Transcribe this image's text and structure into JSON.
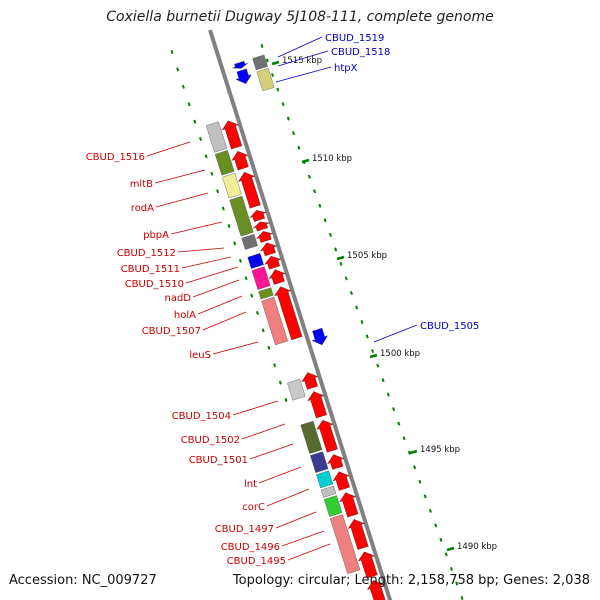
{
  "title": "Coxiella burnetii Dugway 5J108-111, complete genome",
  "accession_label": "Accession: NC_009727",
  "summary_label": "Topology: circular; Length: 2,158,758 bp; Genes: 2,038",
  "colors": {
    "backbone": "#808080",
    "fwd_gene": "#0000ff",
    "rev_gene": "#ff0000",
    "tick": "#008000",
    "label_fwd": "#0000cc",
    "label_rev": "#cc0000",
    "dot": "#008000"
  },
  "ticks": [
    {
      "label": "1515 kbp"
    },
    {
      "label": "1510 kbp"
    },
    {
      "label": "1505 kbp"
    },
    {
      "label": "1500 kbp"
    },
    {
      "label": "1495 kbp"
    },
    {
      "label": "1490 kbp"
    }
  ],
  "genes_forward": [
    {
      "label": "CBUD_1519"
    },
    {
      "label": "CBUD_1518"
    },
    {
      "label": "htpX"
    },
    {
      "label": "CBUD_1505"
    }
  ],
  "genes_reverse": [
    {
      "label": "CBUD_1516"
    },
    {
      "label": "mltB"
    },
    {
      "label": "rodA"
    },
    {
      "label": "pbpA"
    },
    {
      "label": "CBUD_1512"
    },
    {
      "label": "CBUD_1511"
    },
    {
      "label": "CBUD_1510"
    },
    {
      "label": "nadD"
    },
    {
      "label": "holA"
    },
    {
      "label": "CBUD_1507"
    },
    {
      "label": "leuS"
    },
    {
      "label": "CBUD_1504"
    },
    {
      "label": "CBUD_1502"
    },
    {
      "label": "CBUD_1501"
    },
    {
      "label": "lnt"
    },
    {
      "label": "corC"
    },
    {
      "label": "CBUD_1497"
    },
    {
      "label": "CBUD_1496"
    },
    {
      "label": "CBUD_1495"
    }
  ]
}
